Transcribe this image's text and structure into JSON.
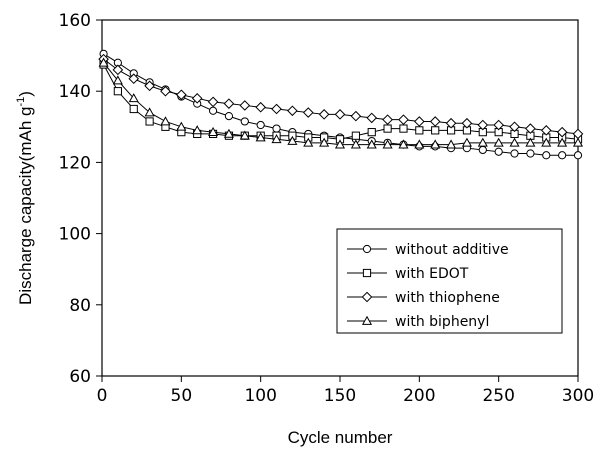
{
  "chart_data": {
    "type": "line",
    "xlabel": "Cycle number",
    "ylabel_main": "Discharge capacity(mAh g",
    "ylabel_sup": "-1",
    "ylabel_close": ")",
    "xlim": [
      0,
      300
    ],
    "ylim": [
      60,
      160
    ],
    "xticks": [
      0,
      50,
      100,
      150,
      200,
      250,
      300
    ],
    "yticks": [
      60,
      80,
      100,
      120,
      140,
      160
    ],
    "grid": false,
    "legend_position": "lower-right",
    "x": [
      1,
      10,
      20,
      30,
      40,
      50,
      60,
      70,
      80,
      90,
      100,
      110,
      120,
      130,
      140,
      150,
      160,
      170,
      180,
      190,
      200,
      210,
      220,
      230,
      240,
      250,
      260,
      270,
      280,
      290,
      300
    ],
    "series": [
      {
        "name": "without additive",
        "marker": "circle",
        "values": [
          150.5,
          148,
          145,
          142.5,
          140.5,
          138.5,
          136.5,
          134.5,
          133,
          131.5,
          130.5,
          129.5,
          128.5,
          128,
          127.5,
          127,
          126.5,
          126,
          125.5,
          125,
          124.5,
          124.5,
          124,
          124,
          123.5,
          123,
          122.5,
          122.5,
          122,
          122,
          122
        ]
      },
      {
        "name": "with EDOT",
        "marker": "square",
        "values": [
          147.5,
          140,
          135,
          131.5,
          130,
          128.5,
          128,
          128,
          127.5,
          127.5,
          127.5,
          127.5,
          127.5,
          127,
          127,
          126.5,
          127.5,
          128.5,
          129.5,
          129.5,
          129,
          129,
          129,
          129,
          128.5,
          128.5,
          128,
          127.5,
          127,
          127,
          126.5
        ]
      },
      {
        "name": "with thiophene",
        "marker": "diamond",
        "values": [
          149,
          146,
          143.5,
          141.5,
          140,
          139,
          138,
          137,
          136.5,
          136,
          135.5,
          135,
          134.5,
          134,
          133.5,
          133.5,
          133,
          132.5,
          132,
          132,
          131.5,
          131.5,
          131,
          131,
          130.5,
          130.5,
          130,
          129.5,
          129,
          128.5,
          128
        ]
      },
      {
        "name": "with biphenyl",
        "marker": "triangle",
        "values": [
          148,
          143,
          138,
          134,
          131.5,
          130,
          129,
          128.5,
          128,
          127.5,
          127,
          126.5,
          126,
          125.5,
          125.5,
          125,
          125,
          125,
          125,
          125,
          125,
          125,
          125,
          125.5,
          125.5,
          125.5,
          125.5,
          125.5,
          125.5,
          125.5,
          125.5
        ]
      }
    ]
  }
}
